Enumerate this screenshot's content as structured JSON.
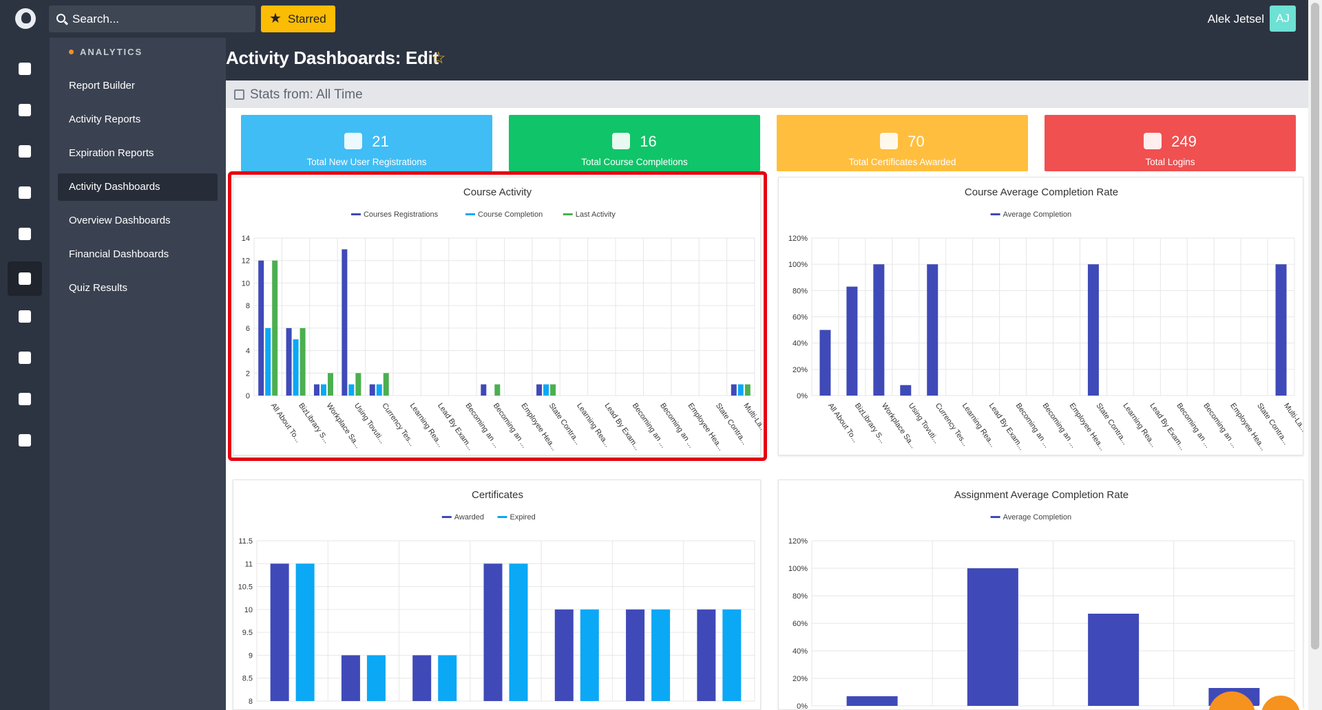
{
  "header": {
    "search_placeholder": "Search...",
    "starred_label": "Starred",
    "user_name": "Alek Jetsel",
    "user_initials": "AJ"
  },
  "rail": {
    "icons": [
      "users-icon",
      "shapes-icon",
      "graduation-cap-icon",
      "megaphone-icon",
      "money-icon",
      "analytics-icon",
      "chat-icon",
      "palette-icon",
      "billing-icon",
      "gear-icon"
    ],
    "active_index": 5
  },
  "sidebar": {
    "heading": "ANALYTICS",
    "items": [
      {
        "label": "Report Builder"
      },
      {
        "label": "Activity Reports"
      },
      {
        "label": "Expiration Reports"
      },
      {
        "label": "Activity Dashboards",
        "active": true
      },
      {
        "label": "Overview Dashboards"
      },
      {
        "label": "Financial Dashboards"
      },
      {
        "label": "Quiz Results"
      }
    ]
  },
  "page": {
    "title": "Activity Dashboards: Edit",
    "stats_label": "Stats from: All Time"
  },
  "stat_cards": [
    {
      "value": "21",
      "label": "Total New User Registrations",
      "color": "#40bdf5",
      "icon": "user-icon"
    },
    {
      "value": "16",
      "label": "Total Course Completions",
      "color": "#10c469",
      "icon": "graduation-cap-icon"
    },
    {
      "value": "70",
      "label": "Total Certificates Awarded",
      "color": "#ffbe3d",
      "icon": "certificate-icon"
    },
    {
      "value": "249",
      "label": "Total Logins",
      "color": "#f05050",
      "icon": "shield-check-icon"
    }
  ],
  "colors": {
    "blue_dark": "#3f4ab8",
    "blue_light": "#0ba8f5",
    "green": "#4caf50",
    "highlight": "#e60012"
  },
  "chart_data": [
    {
      "type": "bar",
      "title": "Course Activity",
      "categories": [
        "All About To...",
        "BizLibrary S...",
        "Workplace Sa...",
        "Using Tovuti...",
        "Currency Tes...",
        "Learning Rea...",
        "Lead By Exam...",
        "Becoming an ...",
        "Becoming an ...",
        "Employee Hea...",
        "State Contra...",
        "Learning Rea...",
        "Lead By Exam...",
        "Becoming an ...",
        "Becoming an ...",
        "Employee Hea...",
        "State Contra...",
        "Multi-La..."
      ],
      "series": [
        {
          "name": "Courses Registrations",
          "color": "#3f4ab8",
          "values": [
            12,
            6,
            1,
            13,
            1,
            0,
            0,
            0,
            1,
            0,
            1,
            0,
            0,
            0,
            0,
            0,
            0,
            1
          ]
        },
        {
          "name": "Course Completion",
          "color": "#0ba8f5",
          "values": [
            6,
            5,
            1,
            1,
            1,
            0,
            0,
            0,
            0,
            0,
            1,
            0,
            0,
            0,
            0,
            0,
            0,
            1
          ]
        },
        {
          "name": "Last Activity",
          "color": "#4caf50",
          "values": [
            12,
            6,
            2,
            2,
            2,
            0,
            0,
            0,
            1,
            0,
            1,
            0,
            0,
            0,
            0,
            0,
            0,
            1
          ]
        }
      ],
      "ylim": [
        0,
        14
      ],
      "yticks": [
        "0",
        "2",
        "4",
        "6",
        "8",
        "10",
        "12",
        "14"
      ],
      "legend": "top"
    },
    {
      "type": "bar",
      "title": "Course Average Completion Rate",
      "categories": [
        "All About To...",
        "BizLibrary S...",
        "Workplace Sa...",
        "Using Tovuti...",
        "Currency Tes...",
        "Learning Rea...",
        "Lead By Exam...",
        "Becoming an ...",
        "Becoming an ...",
        "Employee Hea...",
        "State Contra...",
        "Learning Rea...",
        "Lead By Exam...",
        "Becoming an ...",
        "Becoming an ...",
        "Employee Hea...",
        "State Contra...",
        "Multi-La..."
      ],
      "series": [
        {
          "name": "Average Completion",
          "color": "#3f4ab8",
          "values": [
            50,
            83,
            100,
            8,
            100,
            0,
            0,
            0,
            0,
            0,
            100,
            0,
            0,
            0,
            0,
            0,
            0,
            100
          ]
        }
      ],
      "ylim": [
        0,
        120
      ],
      "yticks": [
        "0%",
        "20%",
        "40%",
        "60%",
        "80%",
        "100%",
        "120%"
      ],
      "legend": "top"
    },
    {
      "type": "bar",
      "title": "Certificates",
      "categories": [
        "",
        "",
        "",
        "",
        "",
        "",
        ""
      ],
      "series": [
        {
          "name": "Awarded",
          "color": "#3f4ab8",
          "values": [
            11,
            9,
            9,
            11,
            10,
            10,
            10
          ]
        },
        {
          "name": "Expired",
          "color": "#0ba8f5",
          "values": [
            11,
            9,
            9,
            11,
            10,
            10,
            10
          ]
        }
      ],
      "ylim": [
        8,
        11.5
      ],
      "yticks": [
        "8",
        "8.5",
        "9",
        "9.5",
        "10",
        "10.5",
        "11",
        "11.5"
      ],
      "legend": "top"
    },
    {
      "type": "bar",
      "title": "Assignment Average Completion Rate",
      "categories": [
        "",
        "",
        "",
        ""
      ],
      "series": [
        {
          "name": "Average Completion",
          "color": "#3f4ab8",
          "values": [
            7,
            100,
            67,
            13
          ]
        }
      ],
      "ylim": [
        0,
        120
      ],
      "yticks": [
        "0%",
        "20%",
        "40%",
        "60%",
        "80%",
        "100%",
        "120%"
      ],
      "legend": "top"
    }
  ]
}
